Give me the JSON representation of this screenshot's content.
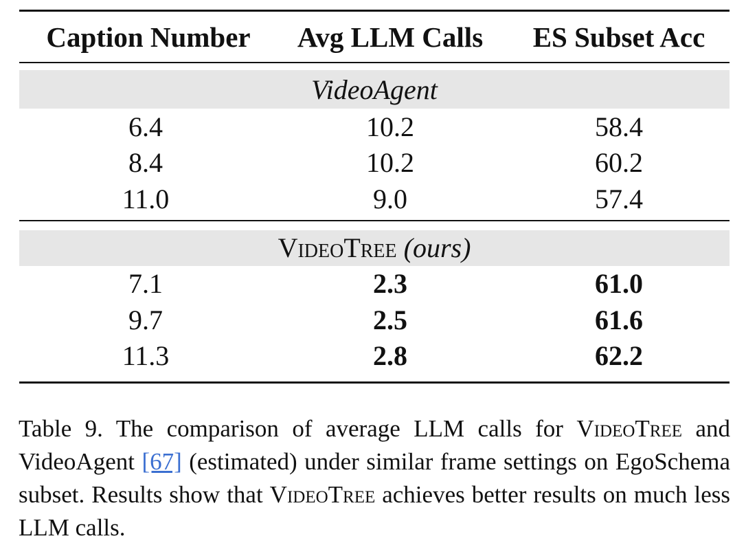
{
  "table": {
    "headers": [
      "Caption Number",
      "Avg LLM Calls",
      "ES Subset Acc"
    ],
    "groups": [
      {
        "label": "VideoAgent",
        "label_suffix": "",
        "rows": [
          [
            "6.4",
            "10.2",
            "58.4"
          ],
          [
            "8.4",
            "10.2",
            "60.2"
          ],
          [
            "11.0",
            "9.0",
            "57.4"
          ]
        ]
      },
      {
        "label": "VideoTree",
        "label_suffix": "(ours)",
        "rows": [
          [
            "7.1",
            "2.3",
            "61.0"
          ],
          [
            "9.7",
            "2.5",
            "61.6"
          ],
          [
            "11.3",
            "2.8",
            "62.2"
          ]
        ]
      }
    ]
  },
  "caption": {
    "part1": "Table 9. The comparison of average LLM calls for ",
    "name1": "VideoTree",
    "part2": " and VideoAgent ",
    "citation": "[67]",
    "part3": " (estimated) under similar frame settings on EgoSchema subset. Results show that ",
    "name2": "VideoTree",
    "part4": " achieves better results on much less LLM calls."
  }
}
